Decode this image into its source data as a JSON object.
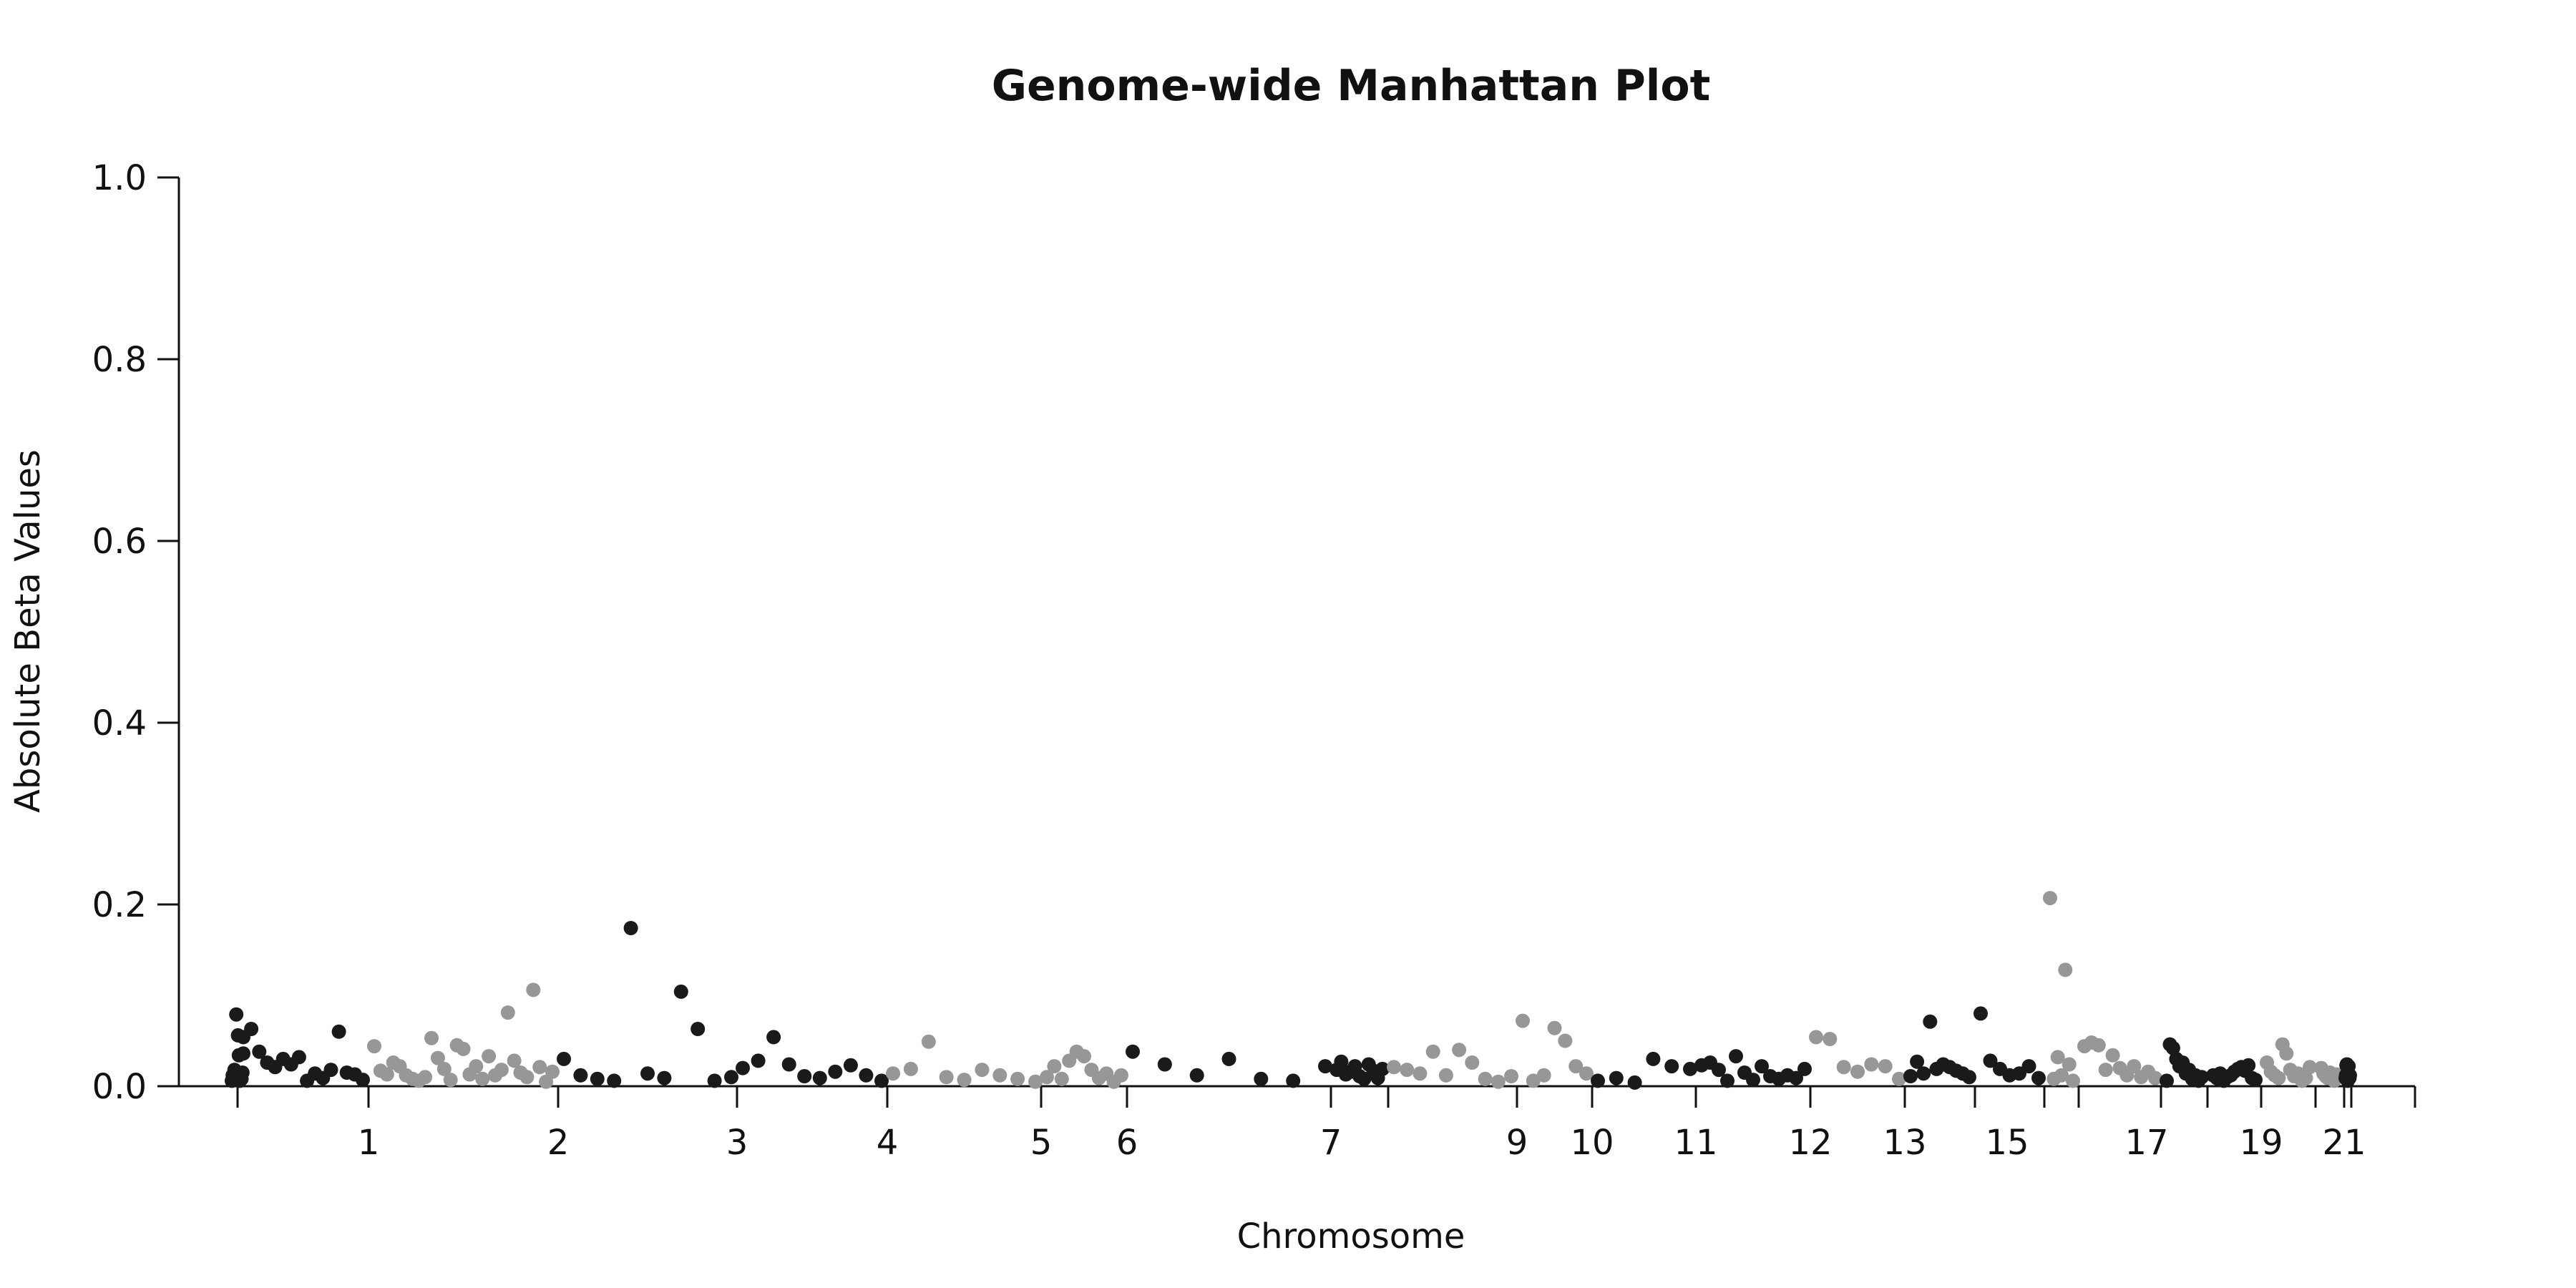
{
  "chart_data": {
    "type": "scatter",
    "title": "Genome-wide Manhattan Plot",
    "xlabel": "Chromosome",
    "ylabel": "Absolute Beta Values",
    "ylim": [
      0,
      1.0
    ],
    "yticks": [
      "0.0",
      "0.2",
      "0.4",
      "0.6",
      "0.8",
      "1.0"
    ],
    "grid": false,
    "xaxis": {
      "chromosome_count": 23,
      "labeled_ticks": [
        "1",
        "2",
        "3",
        "4",
        "5",
        "6",
        "7",
        "9",
        "10",
        "11",
        "12",
        "13",
        "15",
        "17",
        "19",
        "21"
      ]
    },
    "colors": {
      "odd": "#1a1a1a",
      "even": "#979797",
      "axis": "#111111"
    },
    "series": [
      {
        "chromosome": 1,
        "color_group": "odd",
        "values": [
          0.036,
          0.015,
          0.008,
          0.012,
          0.006,
          0.034,
          0.056,
          0.009,
          0.079,
          0.014,
          0.018,
          0.008,
          0.012,
          0.006
        ]
      },
      {
        "chromosome": 2,
        "color_group": "odd",
        "values": [
          0.054,
          0.063,
          0.038,
          0.026,
          0.021,
          0.03,
          0.024,
          0.032,
          0.006,
          0.014,
          0.009,
          0.018,
          0.06,
          0.015,
          0.013,
          0.007
        ]
      },
      {
        "chromosome": 3,
        "color_group": "even",
        "values": [
          0.044,
          0.017,
          0.013,
          0.026,
          0.022,
          0.012,
          0.008,
          0.006,
          0.01,
          0.053,
          0.031,
          0.019,
          0.007,
          0.045,
          0.041,
          0.013,
          0.022,
          0.008,
          0.033,
          0.012,
          0.018,
          0.081,
          0.028,
          0.015,
          0.01,
          0.106,
          0.021,
          0.005,
          0.016
        ]
      },
      {
        "chromosome": 4,
        "color_group": "odd",
        "values": [
          0.03,
          0.012,
          0.008,
          0.006,
          0.174,
          0.014,
          0.009,
          0.104,
          0.063,
          0.006,
          0.01
        ]
      },
      {
        "chromosome": 5,
        "color_group": "odd",
        "values": [
          0.02,
          0.028,
          0.054,
          0.024,
          0.011,
          0.009,
          0.016,
          0.023,
          0.012,
          0.006
        ]
      },
      {
        "chromosome": 6,
        "color_group": "even",
        "values": [
          0.014,
          0.019,
          0.049,
          0.01,
          0.007,
          0.018,
          0.012,
          0.008,
          0.005
        ]
      },
      {
        "chromosome": 7,
        "color_group": "even",
        "values": [
          0.01,
          0.022,
          0.008,
          0.028,
          0.038,
          0.033,
          0.018,
          0.009,
          0.014,
          0.005,
          0.012
        ]
      },
      {
        "chromosome": 8,
        "color_group": "odd",
        "values": [
          0.038,
          0.024,
          0.012,
          0.03,
          0.008,
          0.006,
          0.022
        ]
      },
      {
        "chromosome": 9,
        "color_group": "odd",
        "values": [
          0.018,
          0.027,
          0.013,
          0.016,
          0.022,
          0.011,
          0.008,
          0.024,
          0.017,
          0.009,
          0.019
        ]
      },
      {
        "chromosome": 10,
        "color_group": "even",
        "values": [
          0.021,
          0.018,
          0.014,
          0.038,
          0.012,
          0.04,
          0.026,
          0.008,
          0.005,
          0.011
        ]
      },
      {
        "chromosome": 11,
        "color_group": "even",
        "values": [
          0.072,
          0.006,
          0.012,
          0.064,
          0.05,
          0.022,
          0.014
        ]
      },
      {
        "chromosome": 12,
        "color_group": "odd",
        "values": [
          0.006,
          0.009,
          0.004,
          0.03,
          0.022,
          0.019
        ]
      },
      {
        "chromosome": 13,
        "color_group": "odd",
        "values": [
          0.023,
          0.026,
          0.018,
          0.006,
          0.033,
          0.015,
          0.007,
          0.022,
          0.011,
          0.008,
          0.012,
          0.009,
          0.019
        ]
      },
      {
        "chromosome": 14,
        "color_group": "even",
        "values": [
          0.054,
          0.052,
          0.021,
          0.016,
          0.024,
          0.022,
          0.008
        ]
      },
      {
        "chromosome": 15,
        "color_group": "odd",
        "values": [
          0.011,
          0.027,
          0.014,
          0.071,
          0.019,
          0.024,
          0.021,
          0.017,
          0.014,
          0.01
        ]
      },
      {
        "chromosome": 16,
        "color_group": "odd",
        "values": [
          0.08,
          0.028,
          0.019,
          0.012,
          0.014,
          0.022,
          0.009
        ]
      },
      {
        "chromosome": 17,
        "color_group": "even",
        "values": [
          0.207,
          0.008,
          0.032,
          0.012,
          0.128,
          0.024,
          0.006
        ]
      },
      {
        "chromosome": 18,
        "color_group": "even",
        "values": [
          0.044,
          0.048,
          0.045,
          0.018,
          0.034,
          0.02,
          0.012,
          0.022,
          0.01,
          0.016,
          0.009
        ]
      },
      {
        "chromosome": 19,
        "color_group": "odd",
        "values": [
          0.006,
          0.046,
          0.042,
          0.03,
          0.022,
          0.026,
          0.014,
          0.018,
          0.008,
          0.012,
          0.006,
          0.01
        ]
      },
      {
        "chromosome": 20,
        "color_group": "odd",
        "values": [
          0.012,
          0.009,
          0.014,
          0.006,
          0.01,
          0.012,
          0.016,
          0.019,
          0.021,
          0.017,
          0.023,
          0.009,
          0.007
        ]
      },
      {
        "chromosome": 21,
        "color_group": "even",
        "values": [
          0.026,
          0.016,
          0.012,
          0.009,
          0.046,
          0.036,
          0.018,
          0.011,
          0.014,
          0.006,
          0.009,
          0.021
        ]
      },
      {
        "chromosome": 22,
        "color_group": "even",
        "values": [
          0.02,
          0.014,
          0.011,
          0.009,
          0.015,
          0.008,
          0.006,
          0.013,
          0.01
        ]
      },
      {
        "chromosome": 23,
        "color_group": "odd",
        "values": [
          0.012,
          0.009,
          0.01,
          0.022,
          0.015,
          0.006,
          0.014,
          0.024,
          0.023,
          0.012,
          0.009
        ]
      }
    ]
  }
}
